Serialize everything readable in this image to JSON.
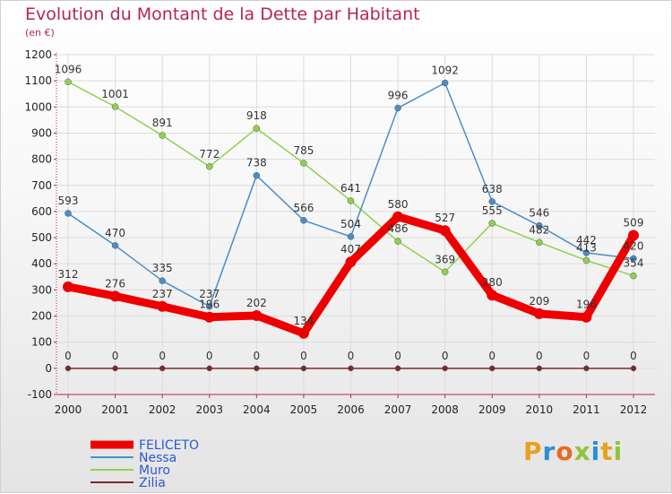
{
  "title": "Evolution du Montant de la Dette par Habitant",
  "unit": "(en €)",
  "logo": "Proxiti",
  "chart_data": {
    "type": "line",
    "title": "Evolution du Montant de la Dette par Habitant",
    "ylabel": "(en €)",
    "ylim": [
      -100,
      1200
    ],
    "yticks": [
      -100,
      0,
      100,
      200,
      300,
      400,
      500,
      600,
      700,
      800,
      900,
      1000,
      1100,
      1200
    ],
    "x": [
      "2000",
      "2001",
      "2002",
      "2003",
      "2004",
      "2005",
      "2006",
      "2007",
      "2008",
      "2009",
      "2010",
      "2011",
      "2012"
    ],
    "grid": true,
    "legend": "bottom-left",
    "series": [
      {
        "name": "FELICETO",
        "color": "#ee0000",
        "values": [
          312,
          276,
          237,
          196,
          202,
          134,
          407,
          580,
          527,
          280,
          209,
          196,
          509
        ]
      },
      {
        "name": "Nessa",
        "color": "#4a8ec8",
        "values": [
          593,
          470,
          335,
          237,
          738,
          566,
          504,
          996,
          1092,
          638,
          546,
          442,
          420
        ]
      },
      {
        "name": "Muro",
        "color": "#8fd14f",
        "values": [
          1096,
          1001,
          891,
          772,
          918,
          785,
          641,
          486,
          369,
          555,
          482,
          413,
          354
        ]
      },
      {
        "name": "Zilia",
        "color": "#7a2a2a",
        "values": [
          0,
          0,
          0,
          0,
          0,
          0,
          0,
          0,
          0,
          0,
          0,
          0,
          0
        ]
      }
    ]
  }
}
